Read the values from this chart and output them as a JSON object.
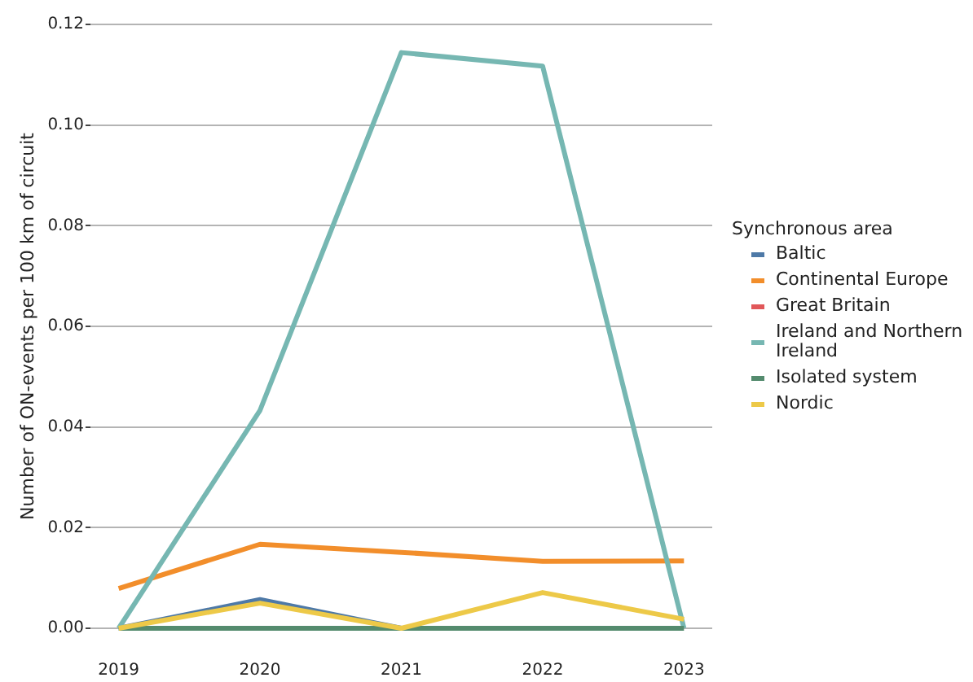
{
  "chart_data": {
    "type": "line",
    "ylabel": "Number of ON-events per 100 km of circuit",
    "legend_title": "Synchronous area",
    "categories": [
      "2019",
      "2020",
      "2021",
      "2022",
      "2023"
    ],
    "series": [
      {
        "name": "Baltic",
        "color": "#4e79a7",
        "values": [
          0,
          0.0057,
          0,
          null,
          null
        ]
      },
      {
        "name": "Continental Europe",
        "color": "#f28e2b",
        "values": [
          0.0079,
          0.0167,
          0.0151,
          0.0133,
          0.0134
        ]
      },
      {
        "name": "Great Britain",
        "color": "#e15759",
        "values": [
          null,
          null,
          null,
          null,
          null
        ]
      },
      {
        "name": "Ireland and Northern Ireland",
        "color": "#76b7b2",
        "values": [
          0,
          0.0433,
          0.1144,
          0.1117,
          0
        ]
      },
      {
        "name": "Isolated system",
        "color": "#548b6e",
        "values": [
          0,
          0,
          0,
          0,
          0
        ]
      },
      {
        "name": "Nordic",
        "color": "#edc948",
        "values": [
          0,
          0.005,
          0,
          0.0071,
          0.0018
        ]
      }
    ],
    "ylim": [
      0,
      0.12
    ],
    "yticks": [
      {
        "value": 0,
        "label": "0.00"
      },
      {
        "value": 0.02,
        "label": "0.02"
      },
      {
        "value": 0.04,
        "label": "0.04"
      },
      {
        "value": 0.06,
        "label": "0.06"
      },
      {
        "value": 0.08,
        "label": "0.08"
      },
      {
        "value": 0.1,
        "label": "0.10"
      },
      {
        "value": 0.12,
        "label": "0.12"
      }
    ],
    "grid": "y",
    "legend": "right",
    "marker": "none",
    "line_style": "solid"
  }
}
